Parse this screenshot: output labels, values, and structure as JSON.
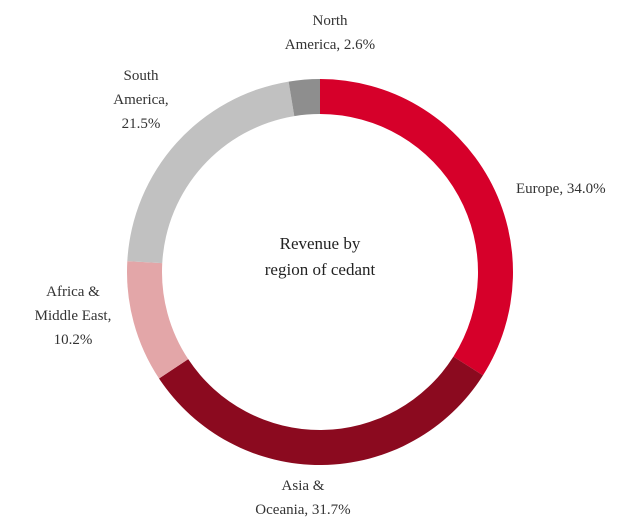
{
  "chart_data": {
    "type": "donut",
    "title": "Revenue by region of cedant",
    "values": [
      34.0,
      31.7,
      10.2,
      21.5,
      2.6
    ],
    "value_labels": [
      [
        "Europe, 34.0%"
      ],
      [
        "Asia &",
        "Oceania, 31.7%"
      ],
      [
        "Africa &",
        "Middle East,",
        "10.2%"
      ],
      [
        "South",
        "America,",
        "21.5%"
      ],
      [
        "North",
        "America, 2.6%"
      ]
    ],
    "colors": [
      "#d6002a",
      "#8b0a1f",
      "#e3a6a8",
      "#c1c1c1",
      "#8e8e8e"
    ]
  }
}
